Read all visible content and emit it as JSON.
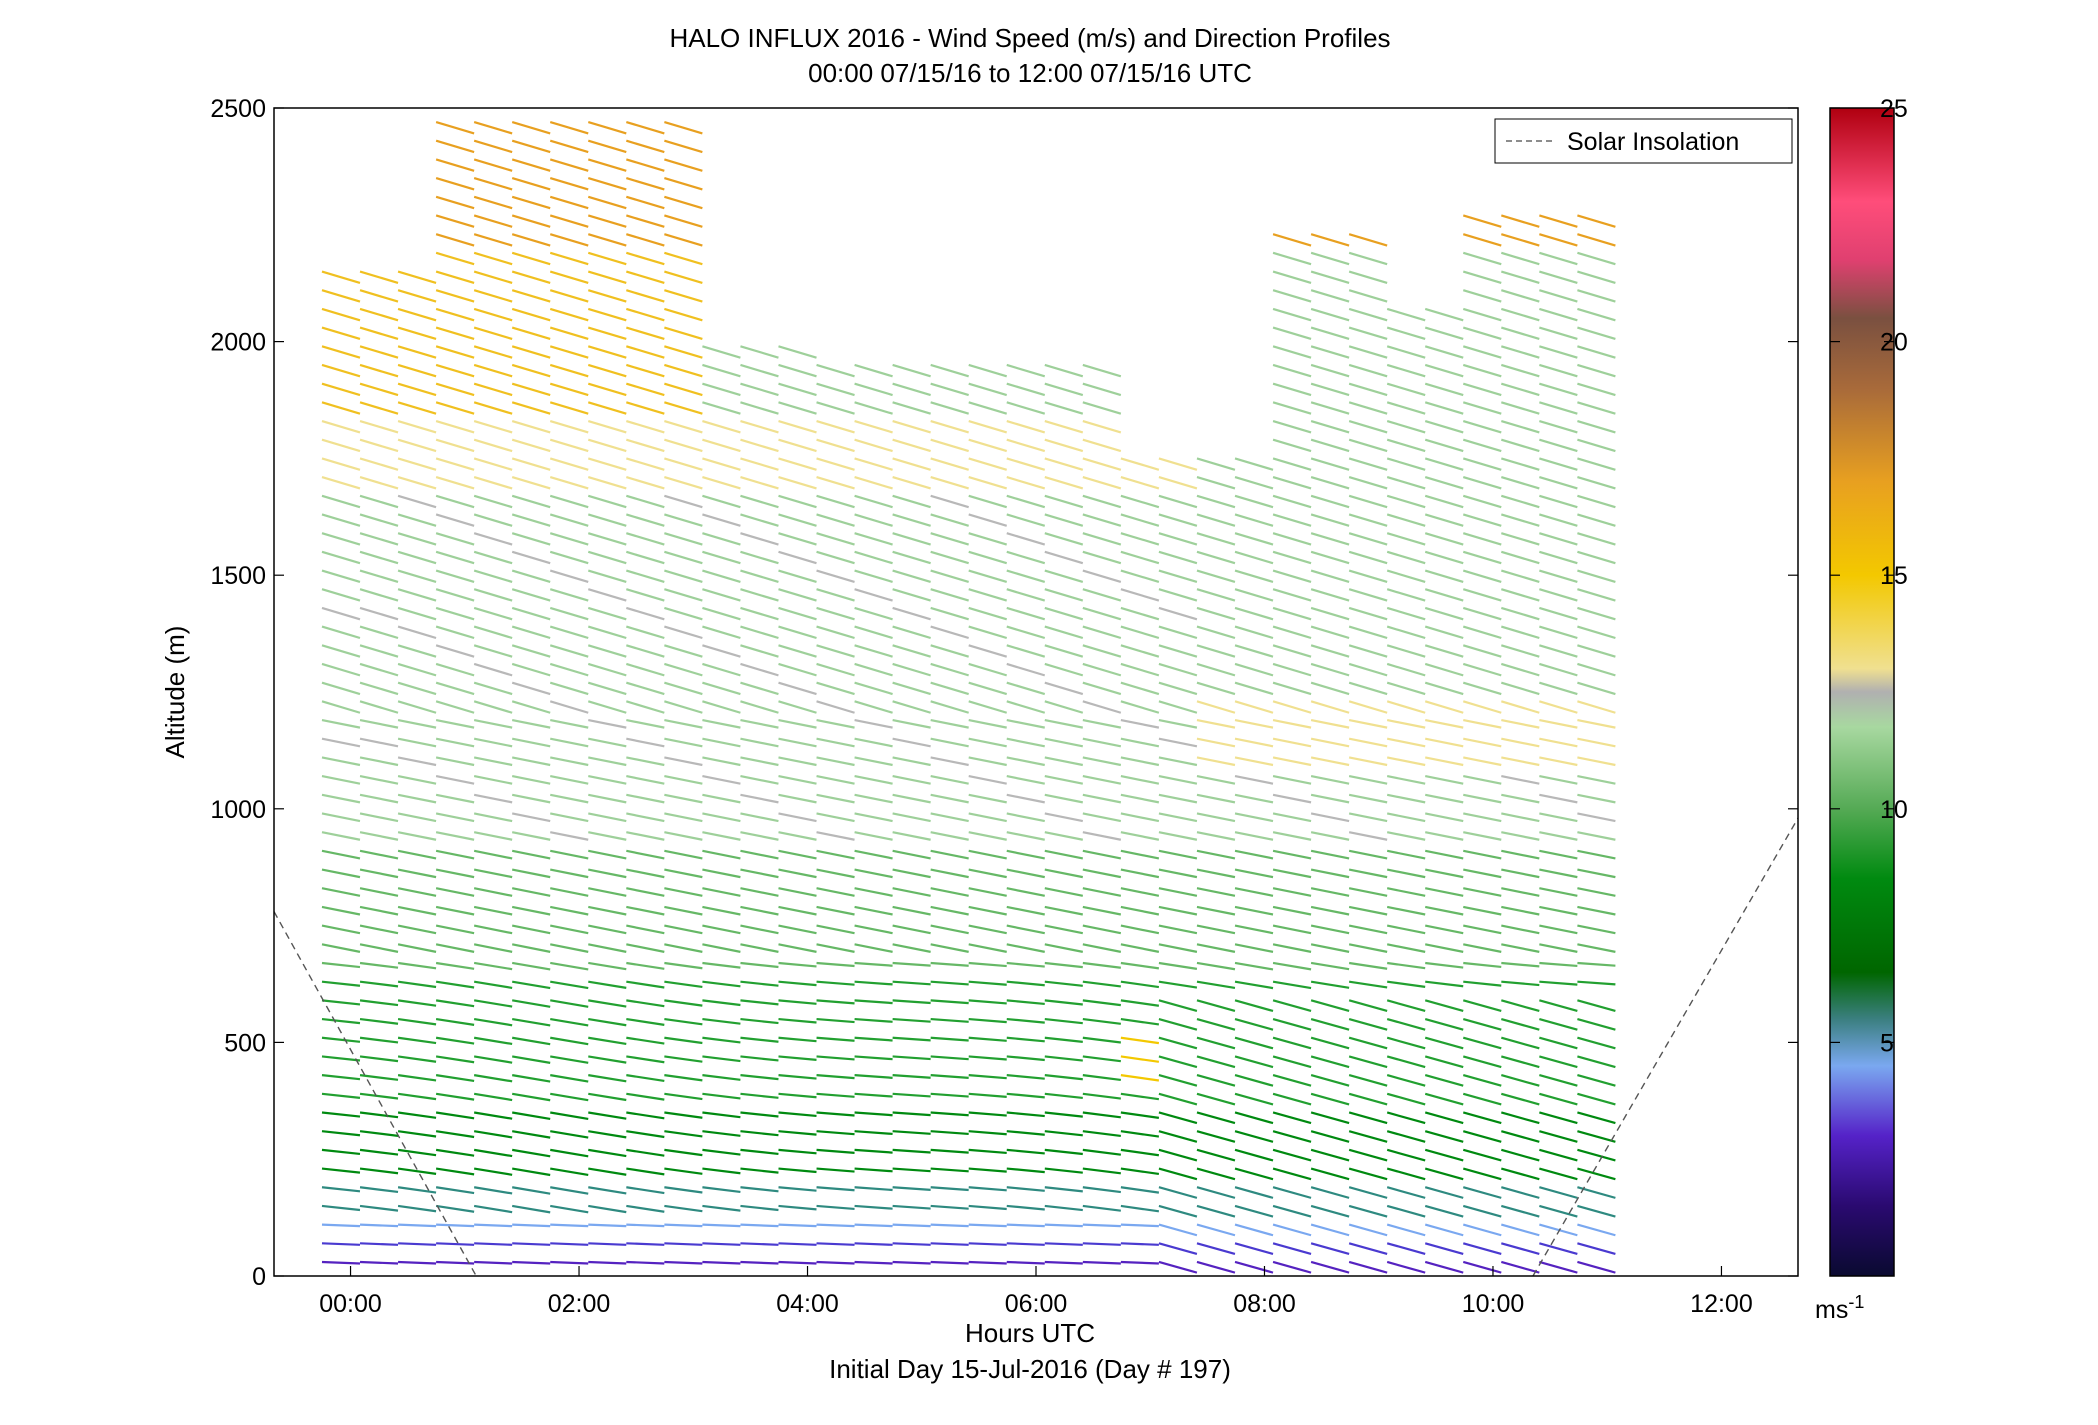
{
  "chart_data": {
    "type": "wind-barb-profile",
    "title": "HALO INFLUX 2016 - Wind Speed (m/s) and Direction Profiles",
    "subtitle": "00:00 07/15/16 to 12:00 07/15/16  UTC",
    "xlabel": "Hours UTC",
    "xlabel2": "Initial Day 15-Jul-2016 (Day # 197)",
    "ylabel": "Altitude (m)",
    "xlim": [
      -0.67,
      12.67
    ],
    "ylim": [
      0,
      2500
    ],
    "x_ticks": [
      {
        "v": 0,
        "label": "00:00"
      },
      {
        "v": 2,
        "label": "02:00"
      },
      {
        "v": 4,
        "label": "04:00"
      },
      {
        "v": 6,
        "label": "06:00"
      },
      {
        "v": 8,
        "label": "08:00"
      },
      {
        "v": 10,
        "label": "10:00"
      },
      {
        "v": 12,
        "label": "12:00"
      }
    ],
    "y_ticks": [
      {
        "v": 0,
        "label": "0"
      },
      {
        "v": 500,
        "label": "500"
      },
      {
        "v": 1000,
        "label": "1000"
      },
      {
        "v": 1500,
        "label": "1500"
      },
      {
        "v": 2000,
        "label": "2000"
      },
      {
        "v": 2500,
        "label": "2500"
      }
    ],
    "legend": {
      "label": "Solar Insolation",
      "placement": "top-right"
    },
    "grid": false,
    "colorbar": {
      "min": 0,
      "max": 25,
      "ticks": [
        {
          "v": 5,
          "label": "5"
        },
        {
          "v": 10,
          "label": "10"
        },
        {
          "v": 15,
          "label": "15"
        },
        {
          "v": 20,
          "label": "20"
        },
        {
          "v": 25,
          "label": "25"
        }
      ],
      "unit": "ms",
      "unit_exp": "-1"
    },
    "profiles": {
      "start_hour": -0.25,
      "end_hour": 10.75,
      "step_hour": 0.333,
      "altitude_step_m": 40
    },
    "solar_insolation": [
      {
        "segment": "evening",
        "points": [
          [
            -0.67,
            780
          ],
          [
            1.1,
            0
          ]
        ]
      },
      {
        "segment": "morning",
        "points": [
          [
            10.35,
            0
          ],
          [
            12.67,
            980
          ]
        ]
      }
    ]
  }
}
